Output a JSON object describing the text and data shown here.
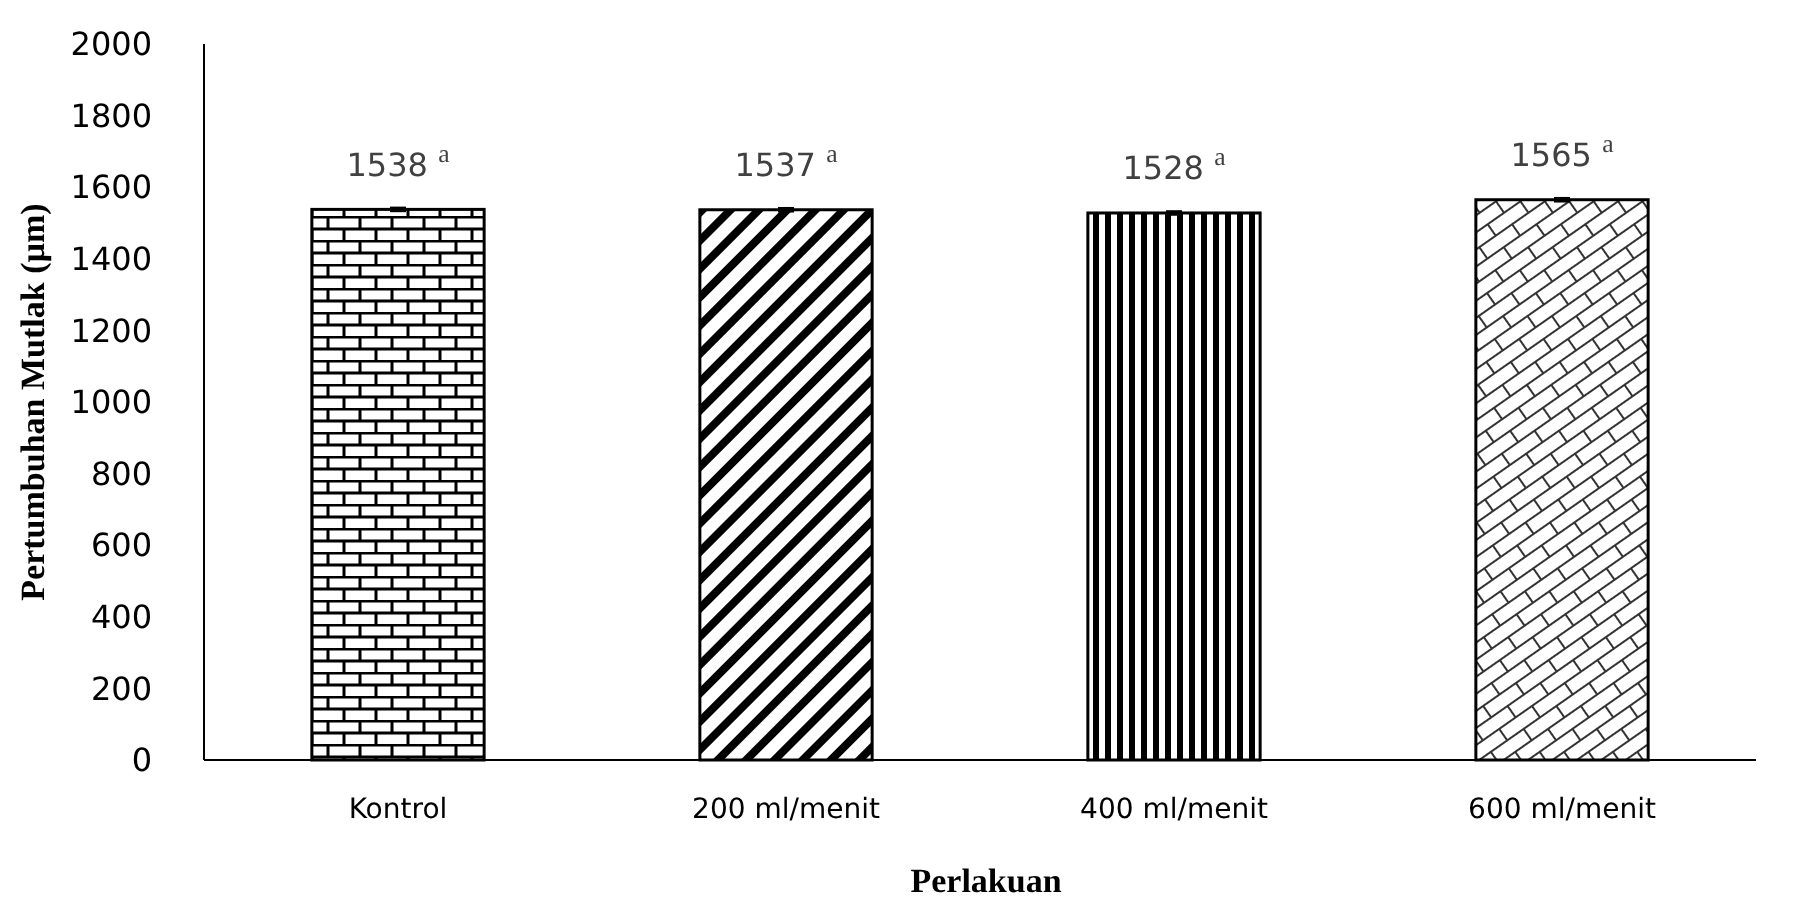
{
  "chart_data": {
    "type": "bar",
    "xlabel": "Perlakuan",
    "ylabel": "Pertumbuhan Mutlak (µm)",
    "categories": [
      "Kontrol",
      "200 ml/menit",
      "400 ml/menit",
      "600 ml/menit"
    ],
    "values": [
      1538,
      1537,
      1528,
      1565
    ],
    "errors": [
      5,
      5,
      5,
      5
    ],
    "colors": [
      "#000000",
      "#000000",
      "#000000",
      "#000000"
    ],
    "value_labels": [
      "1538 $^{a}$",
      "1537 $^{a}$",
      "1528 $^{a}$",
      "1565 $^{a}$"
    ],
    "ylim": [
      0,
      2000
    ],
    "yticks": [
      0,
      200,
      400,
      600,
      800,
      1000,
      1200,
      1400,
      1600,
      1800,
      2000
    ],
    "grid": false
  }
}
